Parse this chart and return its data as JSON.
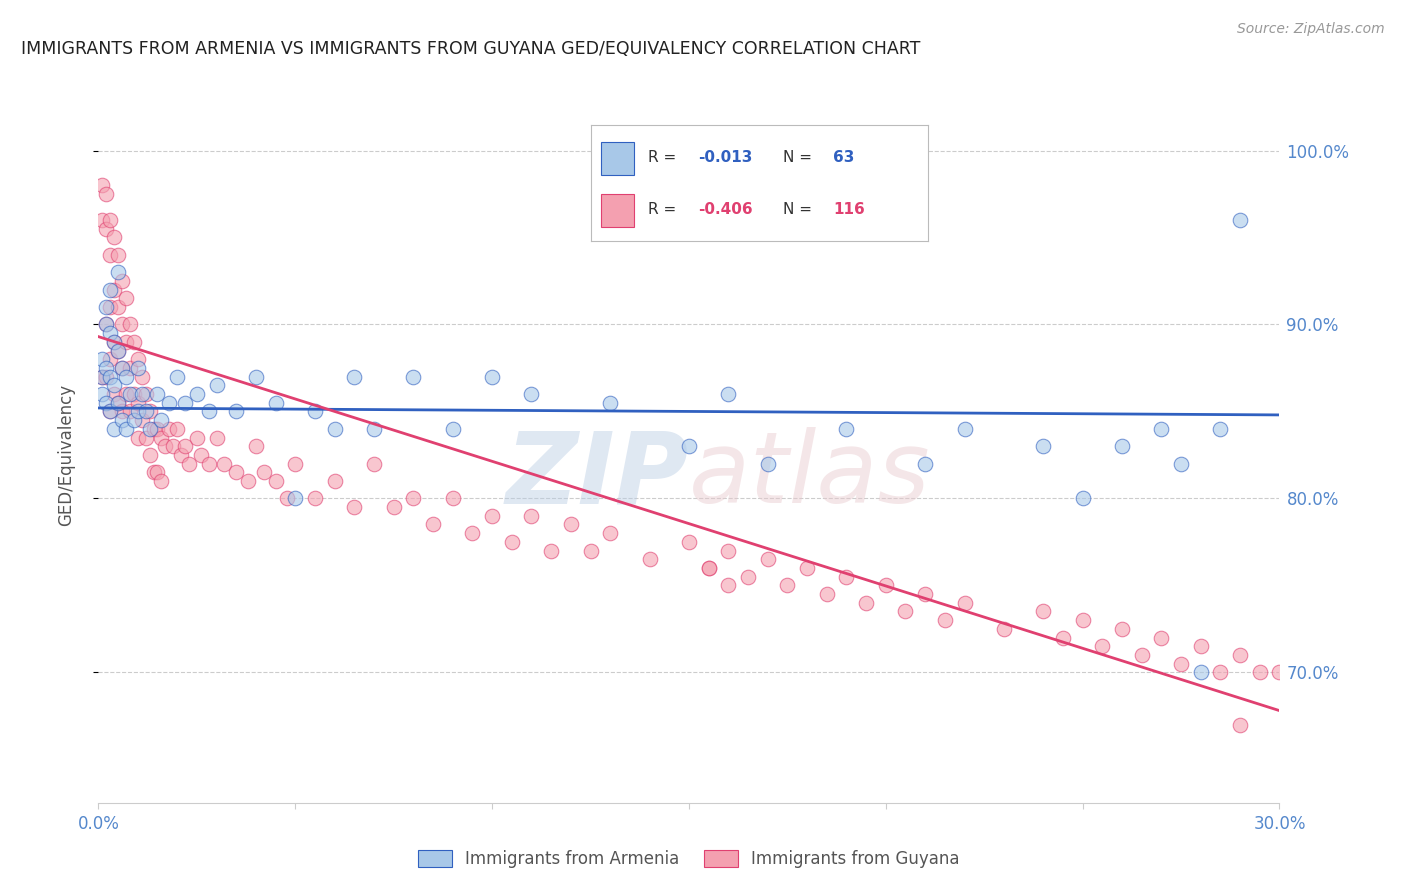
{
  "title": "IMMIGRANTS FROM ARMENIA VS IMMIGRANTS FROM GUYANA GED/EQUIVALENCY CORRELATION CHART",
  "source": "Source: ZipAtlas.com",
  "ylabel": "GED/Equivalency",
  "armenia_color": "#a8c8e8",
  "guyana_color": "#f4a0b0",
  "armenia_line_color": "#3060c0",
  "guyana_line_color": "#e04070",
  "legend_label1": "Immigrants from Armenia",
  "legend_label2": "Immigrants from Guyana",
  "armenia_r": -0.013,
  "armenia_n": 63,
  "guyana_r": -0.406,
  "guyana_n": 116,
  "xmin": 0.0,
  "xmax": 0.3,
  "ymin": 0.625,
  "ymax": 1.025,
  "yticks": [
    0.7,
    0.8,
    0.9,
    1.0
  ],
  "xticks": [
    0.0,
    0.05,
    0.1,
    0.15,
    0.2,
    0.25,
    0.3
  ],
  "tick_label_color": "#5588cc",
  "grid_color": "#cccccc",
  "background_color": "#ffffff",
  "armenia_line_x": [
    0.0,
    0.3
  ],
  "armenia_line_y": [
    0.852,
    0.848
  ],
  "guyana_line_x": [
    0.0,
    0.3
  ],
  "guyana_line_y": [
    0.893,
    0.678
  ],
  "armenia_scatter_x": [
    0.001,
    0.001,
    0.001,
    0.002,
    0.002,
    0.002,
    0.002,
    0.003,
    0.003,
    0.003,
    0.003,
    0.004,
    0.004,
    0.004,
    0.005,
    0.005,
    0.005,
    0.006,
    0.006,
    0.007,
    0.007,
    0.008,
    0.009,
    0.01,
    0.01,
    0.011,
    0.012,
    0.013,
    0.015,
    0.016,
    0.018,
    0.02,
    0.022,
    0.025,
    0.028,
    0.03,
    0.035,
    0.04,
    0.045,
    0.05,
    0.055,
    0.06,
    0.065,
    0.07,
    0.08,
    0.09,
    0.1,
    0.11,
    0.13,
    0.15,
    0.16,
    0.17,
    0.19,
    0.21,
    0.22,
    0.24,
    0.25,
    0.26,
    0.27,
    0.275,
    0.28,
    0.285,
    0.29
  ],
  "armenia_scatter_y": [
    0.88,
    0.87,
    0.86,
    0.91,
    0.9,
    0.875,
    0.855,
    0.92,
    0.895,
    0.87,
    0.85,
    0.89,
    0.865,
    0.84,
    0.93,
    0.885,
    0.855,
    0.875,
    0.845,
    0.87,
    0.84,
    0.86,
    0.845,
    0.875,
    0.85,
    0.86,
    0.85,
    0.84,
    0.86,
    0.845,
    0.855,
    0.87,
    0.855,
    0.86,
    0.85,
    0.865,
    0.85,
    0.87,
    0.855,
    0.8,
    0.85,
    0.84,
    0.87,
    0.84,
    0.87,
    0.84,
    0.87,
    0.86,
    0.855,
    0.83,
    0.86,
    0.82,
    0.84,
    0.82,
    0.84,
    0.83,
    0.8,
    0.83,
    0.84,
    0.82,
    0.7,
    0.84,
    0.96
  ],
  "guyana_scatter_x": [
    0.001,
    0.001,
    0.001,
    0.002,
    0.002,
    0.002,
    0.002,
    0.003,
    0.003,
    0.003,
    0.003,
    0.003,
    0.004,
    0.004,
    0.004,
    0.004,
    0.005,
    0.005,
    0.005,
    0.005,
    0.006,
    0.006,
    0.006,
    0.006,
    0.007,
    0.007,
    0.007,
    0.008,
    0.008,
    0.008,
    0.009,
    0.009,
    0.01,
    0.01,
    0.01,
    0.011,
    0.011,
    0.012,
    0.012,
    0.013,
    0.013,
    0.014,
    0.014,
    0.015,
    0.015,
    0.016,
    0.016,
    0.017,
    0.018,
    0.019,
    0.02,
    0.021,
    0.022,
    0.023,
    0.025,
    0.026,
    0.028,
    0.03,
    0.032,
    0.035,
    0.038,
    0.04,
    0.042,
    0.045,
    0.048,
    0.05,
    0.055,
    0.06,
    0.065,
    0.07,
    0.075,
    0.08,
    0.085,
    0.09,
    0.095,
    0.1,
    0.105,
    0.11,
    0.115,
    0.12,
    0.125,
    0.13,
    0.14,
    0.15,
    0.155,
    0.16,
    0.165,
    0.17,
    0.175,
    0.18,
    0.185,
    0.19,
    0.195,
    0.2,
    0.205,
    0.21,
    0.215,
    0.22,
    0.23,
    0.24,
    0.245,
    0.25,
    0.255,
    0.26,
    0.265,
    0.27,
    0.275,
    0.28,
    0.285,
    0.29,
    0.295,
    0.3,
    0.305,
    0.155,
    0.16,
    0.29
  ],
  "guyana_scatter_y": [
    0.98,
    0.96,
    0.87,
    0.975,
    0.955,
    0.9,
    0.87,
    0.96,
    0.94,
    0.91,
    0.88,
    0.85,
    0.95,
    0.92,
    0.89,
    0.86,
    0.94,
    0.91,
    0.885,
    0.855,
    0.925,
    0.9,
    0.875,
    0.85,
    0.915,
    0.89,
    0.86,
    0.9,
    0.875,
    0.85,
    0.89,
    0.86,
    0.88,
    0.855,
    0.835,
    0.87,
    0.845,
    0.86,
    0.835,
    0.85,
    0.825,
    0.84,
    0.815,
    0.84,
    0.815,
    0.835,
    0.81,
    0.83,
    0.84,
    0.83,
    0.84,
    0.825,
    0.83,
    0.82,
    0.835,
    0.825,
    0.82,
    0.835,
    0.82,
    0.815,
    0.81,
    0.83,
    0.815,
    0.81,
    0.8,
    0.82,
    0.8,
    0.81,
    0.795,
    0.82,
    0.795,
    0.8,
    0.785,
    0.8,
    0.78,
    0.79,
    0.775,
    0.79,
    0.77,
    0.785,
    0.77,
    0.78,
    0.765,
    0.775,
    0.76,
    0.77,
    0.755,
    0.765,
    0.75,
    0.76,
    0.745,
    0.755,
    0.74,
    0.75,
    0.735,
    0.745,
    0.73,
    0.74,
    0.725,
    0.735,
    0.72,
    0.73,
    0.715,
    0.725,
    0.71,
    0.72,
    0.705,
    0.715,
    0.7,
    0.71,
    0.7,
    0.7,
    0.695,
    0.76,
    0.75,
    0.67
  ]
}
